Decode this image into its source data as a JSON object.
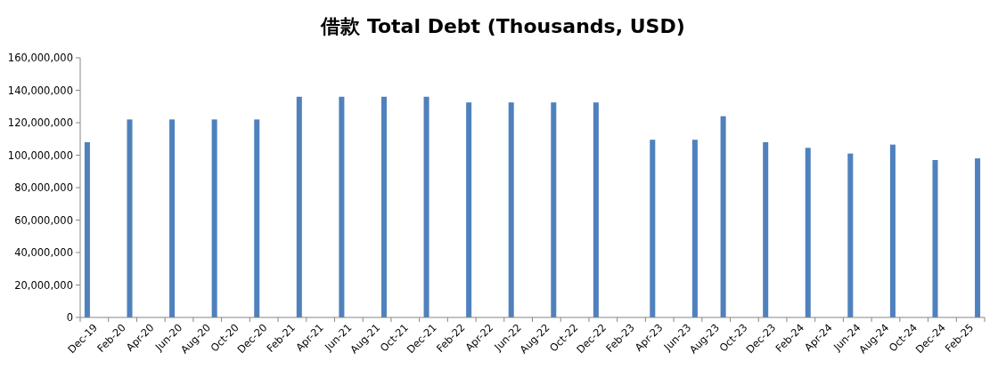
{
  "chart_data": {
    "type": "bar",
    "title": "借款 Total Debt (Thousands, USD)",
    "x": [
      "2019-12-16",
      "2020-03-16",
      "2020-06-16",
      "2020-09-16",
      "2020-12-16",
      "2021-03-16",
      "2021-06-16",
      "2021-09-16",
      "2021-12-16",
      "2022-03-16",
      "2022-06-16",
      "2022-09-16",
      "2022-12-16",
      "2023-04-16",
      "2023-07-16",
      "2023-09-16",
      "2023-12-16",
      "2024-03-16",
      "2024-06-16",
      "2024-09-16",
      "2024-12-16",
      "2025-03-16"
    ],
    "values": [
      108000000,
      122000000,
      122000000,
      122000000,
      122000000,
      136000000,
      136000000,
      136000000,
      136000000,
      132500000,
      132500000,
      132500000,
      132500000,
      109500000,
      109500000,
      124000000,
      108000000,
      104500000,
      101000000,
      106500000,
      97000000,
      98000000
    ],
    "color": "#4f81bd",
    "xlim": [
      "2019-12",
      "2025-04"
    ],
    "xticks": [
      {
        "value": "2019-12",
        "label": "Dec-19"
      },
      {
        "value": "2020-02",
        "label": "Feb-20"
      },
      {
        "value": "2020-04",
        "label": "Apr-20"
      },
      {
        "value": "2020-06",
        "label": "Jun-20"
      },
      {
        "value": "2020-08",
        "label": "Aug-20"
      },
      {
        "value": "2020-10",
        "label": "Oct-20"
      },
      {
        "value": "2020-12",
        "label": "Dec-20"
      },
      {
        "value": "2021-02",
        "label": "Feb-21"
      },
      {
        "value": "2021-04",
        "label": "Apr-21"
      },
      {
        "value": "2021-06",
        "label": "Jun-21"
      },
      {
        "value": "2021-08",
        "label": "Aug-21"
      },
      {
        "value": "2021-10",
        "label": "Oct-21"
      },
      {
        "value": "2021-12",
        "label": "Dec-21"
      },
      {
        "value": "2022-02",
        "label": "Feb-22"
      },
      {
        "value": "2022-04",
        "label": "Apr-22"
      },
      {
        "value": "2022-06",
        "label": "Jun-22"
      },
      {
        "value": "2022-08",
        "label": "Aug-22"
      },
      {
        "value": "2022-10",
        "label": "Oct-22"
      },
      {
        "value": "2022-12",
        "label": "Dec-22"
      },
      {
        "value": "2023-02",
        "label": "Feb-23"
      },
      {
        "value": "2023-04",
        "label": "Apr-23"
      },
      {
        "value": "2023-06",
        "label": "Jun-23"
      },
      {
        "value": "2023-08",
        "label": "Aug-23"
      },
      {
        "value": "2023-10",
        "label": "Oct-23"
      },
      {
        "value": "2023-12",
        "label": "Dec-23"
      },
      {
        "value": "2024-02",
        "label": "Feb-24"
      },
      {
        "value": "2024-04",
        "label": "Apr-24"
      },
      {
        "value": "2024-06",
        "label": "Jun-24"
      },
      {
        "value": "2024-08",
        "label": "Aug-24"
      },
      {
        "value": "2024-10",
        "label": "Oct-24"
      },
      {
        "value": "2024-12",
        "label": "Dec-24"
      },
      {
        "value": "2025-02",
        "label": "Feb-25"
      },
      {
        "value": "2025-04",
        "label": null
      }
    ],
    "ylim": [
      0,
      160000000
    ],
    "yticks": [
      {
        "value": 0,
        "label": "0"
      },
      {
        "value": 20000000,
        "label": "20,000,000"
      },
      {
        "value": 40000000,
        "label": "40,000,000"
      },
      {
        "value": 60000000,
        "label": "60,000,000"
      },
      {
        "value": 80000000,
        "label": "80,000,000"
      },
      {
        "value": 100000000,
        "label": "100,000,000"
      },
      {
        "value": 120000000,
        "label": "120,000,000"
      },
      {
        "value": 140000000,
        "label": "140,000,000"
      },
      {
        "value": 160000000,
        "label": "160,000,000"
      }
    ],
    "grid": false
  }
}
